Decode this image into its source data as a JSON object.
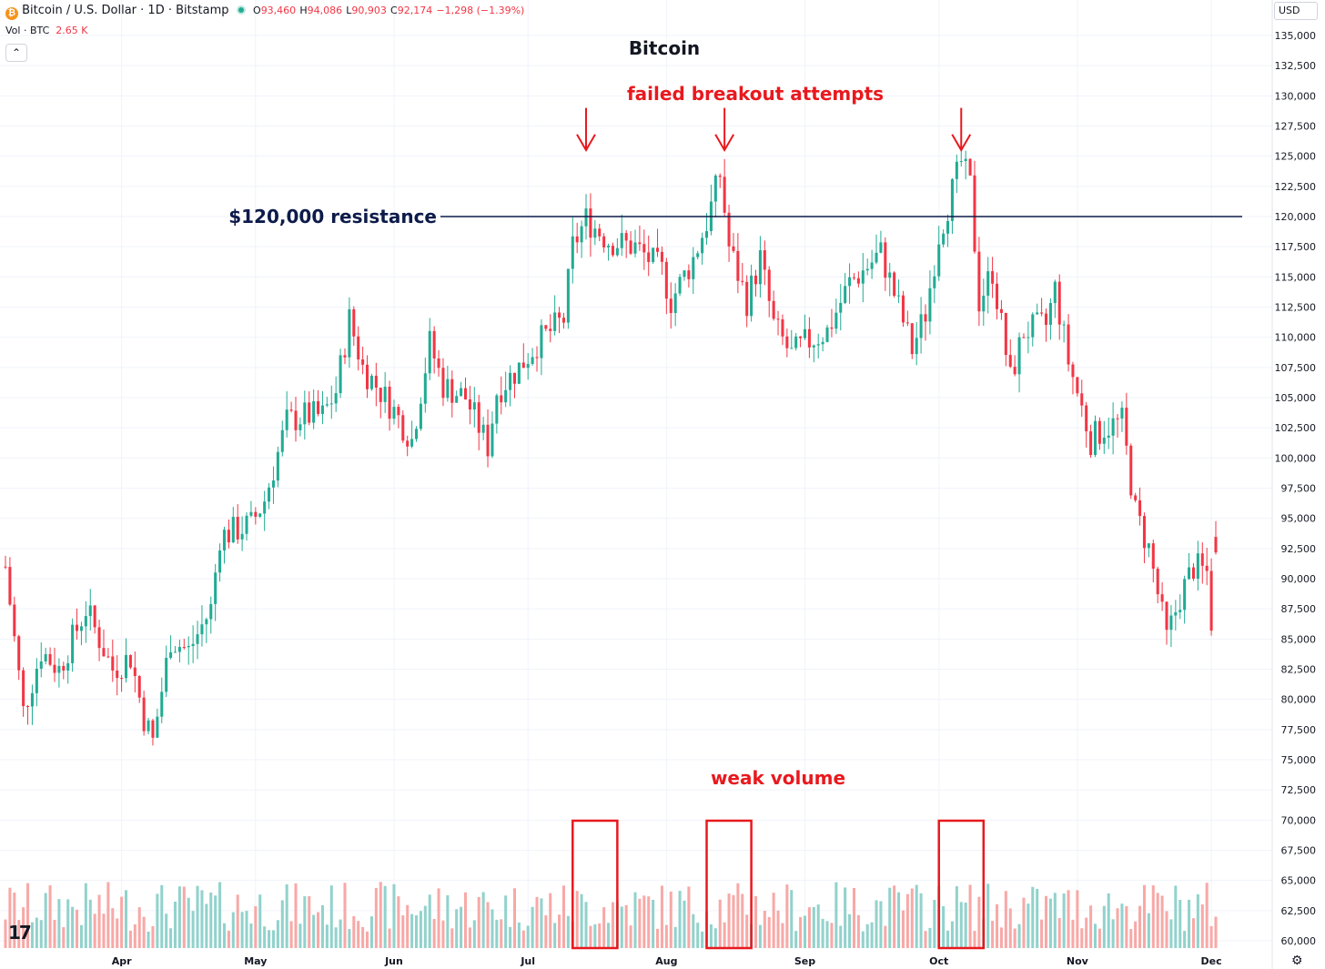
{
  "header": {
    "symbol": "Bitcoin / U.S. Dollar · 1D · Bitstamp",
    "o_label": "O",
    "o_value": "93,460",
    "h_label": "H",
    "h_value": "94,086",
    "l_label": "L",
    "l_value": "90,903",
    "c_label": "C",
    "c_value": "92,174",
    "change": "−1,298 (−1.39%)",
    "vol_label": "Vol · BTC",
    "vol_value": "2.65 K",
    "currency": "USD",
    "collapse_icon": "chevron-up-icon",
    "logo_text": "17",
    "settings_icon": "gear-icon"
  },
  "colors": {
    "up": "#22ab94",
    "down": "#f23645",
    "up_vol": "#92d2cc",
    "down_vol": "#f7a9a7",
    "annotation": "#e8191e",
    "resistance": "#0d1b4a"
  },
  "chart_data": {
    "type": "candlestick",
    "title": "Bitcoin",
    "y_axis": {
      "min": 60000,
      "max": 135000,
      "ticks": [
        135000,
        132500,
        130000,
        127500,
        125000,
        122500,
        120000,
        117500,
        115000,
        112500,
        110000,
        107500,
        105000,
        102500,
        100000,
        97500,
        95000,
        92500,
        90000,
        87500,
        85000,
        82500,
        80000,
        77500,
        75000,
        72500,
        70000,
        67500,
        65000,
        62500,
        60000
      ],
      "tick_labels": [
        "135,000",
        "132,500",
        "130,000",
        "127,500",
        "125,000",
        "122,500",
        "120,000",
        "117,500",
        "115,000",
        "112,500",
        "110,000",
        "107,500",
        "105,000",
        "102,500",
        "100,000",
        "97,500",
        "95,000",
        "92,500",
        "90,000",
        "87,500",
        "85,000",
        "82,500",
        "80,000",
        "77,500",
        "75,000",
        "72,500",
        "70,000",
        "67,500",
        "65,000",
        "62,500",
        "60,000"
      ]
    },
    "x_axis": {
      "start": "2025-03-06",
      "end": "2025-12-02",
      "ticks": [
        {
          "date": "2025-04-01",
          "label": "Apr"
        },
        {
          "date": "2025-05-01",
          "label": "May"
        },
        {
          "date": "2025-06-01",
          "label": "Jun"
        },
        {
          "date": "2025-07-01",
          "label": "Jul"
        },
        {
          "date": "2025-08-01",
          "label": "Aug"
        },
        {
          "date": "2025-09-01",
          "label": "Sep"
        },
        {
          "date": "2025-10-01",
          "label": "Oct"
        },
        {
          "date": "2025-11-01",
          "label": "Nov"
        },
        {
          "date": "2025-12-01",
          "label": "Dec"
        }
      ]
    },
    "close_path": [
      [
        "2025-03-06",
        91000
      ],
      [
        "2025-03-10",
        79000
      ],
      [
        "2025-03-14",
        84000
      ],
      [
        "2025-03-18",
        82500
      ],
      [
        "2025-03-24",
        87500
      ],
      [
        "2025-03-30",
        82500
      ],
      [
        "2025-04-03",
        83500
      ],
      [
        "2025-04-06",
        78500
      ],
      [
        "2025-04-08",
        76500
      ],
      [
        "2025-04-12",
        85000
      ],
      [
        "2025-04-16",
        84000
      ],
      [
        "2025-04-21",
        87500
      ],
      [
        "2025-04-23",
        93500
      ],
      [
        "2025-04-30",
        94500
      ],
      [
        "2025-05-03",
        96500
      ],
      [
        "2025-05-08",
        103000
      ],
      [
        "2025-05-12",
        103500
      ],
      [
        "2025-05-16",
        103500
      ],
      [
        "2025-05-19",
        105500
      ],
      [
        "2025-05-22",
        111500
      ],
      [
        "2025-05-25",
        107500
      ],
      [
        "2025-05-31",
        104500
      ],
      [
        "2025-06-05",
        101500
      ],
      [
        "2025-06-09",
        109500
      ],
      [
        "2025-06-12",
        106000
      ],
      [
        "2025-06-17",
        105000
      ],
      [
        "2025-06-22",
        101000
      ],
      [
        "2025-06-24",
        105500
      ],
      [
        "2025-06-29",
        107500
      ],
      [
        "2025-07-03",
        109500
      ],
      [
        "2025-07-09",
        111500
      ],
      [
        "2025-07-11",
        117500
      ],
      [
        "2025-07-14",
        119800
      ],
      [
        "2025-07-19",
        118000
      ],
      [
        "2025-07-25",
        117500
      ],
      [
        "2025-07-31",
        115500
      ],
      [
        "2025-08-02",
        113000
      ],
      [
        "2025-08-07",
        116500
      ],
      [
        "2025-08-10",
        119500
      ],
      [
        "2025-08-13",
        123500
      ],
      [
        "2025-08-15",
        117500
      ],
      [
        "2025-08-19",
        113000
      ],
      [
        "2025-08-22",
        116500
      ],
      [
        "2025-08-25",
        111000
      ],
      [
        "2025-08-29",
        108500
      ],
      [
        "2025-09-01",
        109500
      ],
      [
        "2025-09-06",
        110500
      ],
      [
        "2025-09-11",
        114500
      ],
      [
        "2025-09-14",
        115500
      ],
      [
        "2025-09-18",
        117000
      ],
      [
        "2025-09-22",
        112500
      ],
      [
        "2025-09-25",
        109000
      ],
      [
        "2025-09-28",
        112000
      ],
      [
        "2025-10-01",
        118500
      ],
      [
        "2025-10-06",
        124500
      ],
      [
        "2025-10-08",
        122500
      ],
      [
        "2025-10-10",
        113000
      ],
      [
        "2025-10-13",
        115500
      ],
      [
        "2025-10-17",
        106500
      ],
      [
        "2025-10-20",
        110500
      ],
      [
        "2025-10-25",
        111000
      ],
      [
        "2025-10-27",
        114000
      ],
      [
        "2025-10-30",
        108000
      ],
      [
        "2025-11-04",
        101500
      ],
      [
        "2025-11-07",
        102500
      ],
      [
        "2025-11-11",
        103000
      ],
      [
        "2025-11-14",
        95500
      ],
      [
        "2025-11-17",
        92500
      ],
      [
        "2025-11-21",
        85000
      ],
      [
        "2025-11-24",
        88500
      ],
      [
        "2025-11-27",
        91000
      ],
      [
        "2025-11-30",
        90500
      ],
      [
        "2025-12-01",
        86500
      ],
      [
        "2025-12-02",
        92174
      ]
    ],
    "annotations": [
      {
        "text": "$120,000 resistance",
        "type": "horizontal_line",
        "value": 120000
      },
      {
        "text": "failed breakout attempts",
        "type": "text"
      },
      {
        "type": "arrow",
        "date": "2025-07-14"
      },
      {
        "type": "arrow",
        "date": "2025-08-14"
      },
      {
        "type": "arrow",
        "date": "2025-10-06"
      },
      {
        "text": "weak volume",
        "type": "text"
      },
      {
        "type": "box",
        "from": "2025-07-11",
        "to": "2025-07-21"
      },
      {
        "type": "box",
        "from": "2025-08-10",
        "to": "2025-08-20"
      },
      {
        "type": "box",
        "from": "2025-10-01",
        "to": "2025-10-11"
      }
    ]
  }
}
